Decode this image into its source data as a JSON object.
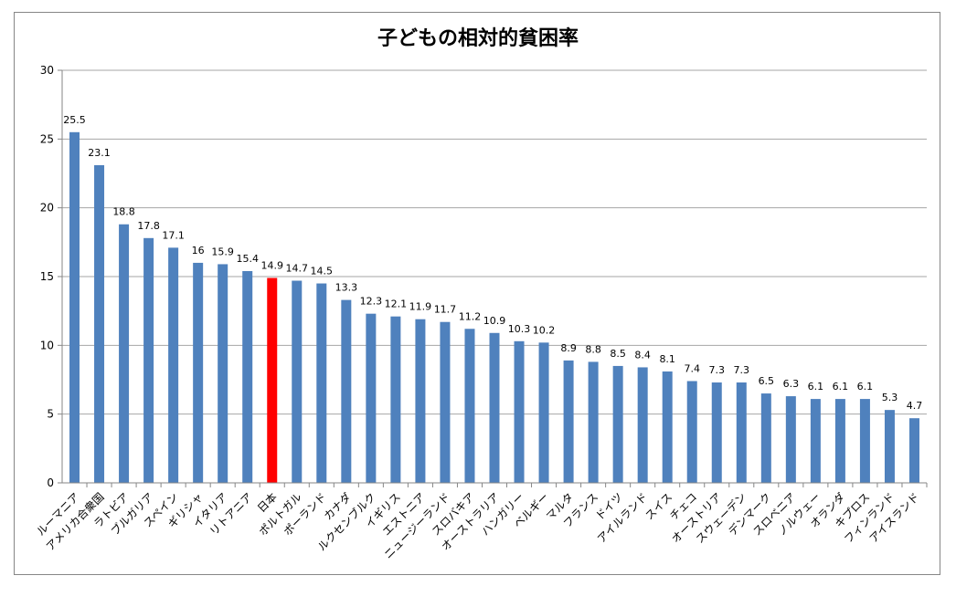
{
  "chart_data": {
    "type": "bar",
    "title": "子どもの相対的貧困率",
    "xlabel": "",
    "ylabel": "",
    "ylim": [
      0,
      30
    ],
    "yticks": [
      0,
      5,
      10,
      15,
      20,
      25,
      30
    ],
    "grid": true,
    "legend": "none",
    "colors": {
      "default": "#4F81BD",
      "highlight": "#FF0000",
      "grid": "#A6A6A6",
      "axis": "#868686"
    },
    "highlight_category": "日本",
    "categories": [
      "ルーマニア",
      "アメリカ合衆国",
      "ラトビア",
      "ブルガリア",
      "スペイン",
      "ギリシャ",
      "イタリア",
      "リトアニア",
      "日本",
      "ポルトガル",
      "ポーランド",
      "カナダ",
      "ルクセンブルク",
      "イギリス",
      "エストニア",
      "ニュージーランド",
      "スロバキア",
      "オーストラリア",
      "ハンガリー",
      "ベルギー",
      "マルタ",
      "フランス",
      "ドイツ",
      "アイルランド",
      "スイス",
      "チェコ",
      "オーストリア",
      "スウェーデン",
      "デンマーク",
      "スロベニア",
      "ノルウェー",
      "オランダ",
      "キプロス",
      "フィンランド",
      "アイスランド"
    ],
    "values": [
      25.5,
      23.1,
      18.8,
      17.8,
      17.1,
      16,
      15.9,
      15.4,
      14.9,
      14.7,
      14.5,
      13.3,
      12.3,
      12.1,
      11.9,
      11.7,
      11.2,
      10.9,
      10.3,
      10.2,
      8.9,
      8.8,
      8.5,
      8.4,
      8.1,
      7.4,
      7.3,
      7.3,
      6.5,
      6.3,
      6.1,
      6.1,
      6.1,
      5.3,
      4.7
    ]
  }
}
